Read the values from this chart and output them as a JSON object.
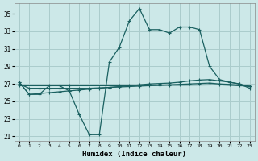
{
  "title": "",
  "xlabel": "Humidex (Indice chaleur)",
  "ylabel": "",
  "background_color": "#cce8e8",
  "grid_color": "#aacccc",
  "line_color": "#1a6060",
  "xlim": [
    -0.5,
    23.5
  ],
  "ylim": [
    20.5,
    36.2
  ],
  "yticks": [
    21,
    23,
    25,
    27,
    29,
    31,
    33,
    35
  ],
  "xticks": [
    0,
    1,
    2,
    3,
    4,
    5,
    6,
    7,
    8,
    9,
    10,
    11,
    12,
    13,
    14,
    15,
    16,
    17,
    18,
    19,
    20,
    21,
    22,
    23
  ],
  "main_line_x": [
    0,
    1,
    2,
    3,
    4,
    5,
    6,
    7,
    8,
    9,
    10,
    11,
    12,
    13,
    14,
    15,
    16,
    17,
    18,
    19,
    20,
    21,
    22,
    23
  ],
  "main_line_y": [
    27.2,
    25.8,
    25.8,
    26.8,
    26.8,
    26.2,
    23.5,
    21.2,
    21.2,
    29.5,
    31.2,
    34.2,
    35.6,
    33.2,
    33.2,
    32.8,
    33.5,
    33.5,
    33.2,
    29.0,
    27.5,
    27.2,
    27.0,
    26.5
  ],
  "line2_x": [
    0,
    1,
    2,
    3,
    4,
    5,
    6,
    7,
    8,
    9,
    10,
    11,
    12,
    13,
    14,
    15,
    16,
    17,
    18,
    19,
    20,
    21,
    22,
    23
  ],
  "line2_y": [
    27.2,
    25.8,
    25.9,
    26.0,
    26.1,
    26.2,
    26.3,
    26.4,
    26.5,
    26.6,
    26.7,
    26.8,
    26.9,
    27.0,
    27.05,
    27.1,
    27.2,
    27.35,
    27.45,
    27.5,
    27.35,
    27.2,
    27.0,
    26.7
  ],
  "line3_x": [
    0,
    1,
    2,
    3,
    4,
    5,
    6,
    7,
    8,
    9,
    10,
    11,
    12,
    13,
    14,
    15,
    16,
    17,
    18,
    19,
    20,
    21,
    22,
    23
  ],
  "line3_y": [
    27.0,
    26.5,
    26.5,
    26.5,
    26.5,
    26.5,
    26.5,
    26.5,
    26.55,
    26.6,
    26.65,
    26.7,
    26.75,
    26.8,
    26.85,
    26.9,
    26.95,
    27.0,
    27.05,
    27.1,
    27.0,
    26.95,
    26.85,
    26.7
  ],
  "line4_x": [
    0,
    5,
    10,
    15,
    20,
    23
  ],
  "line4_y": [
    26.8,
    26.8,
    26.8,
    26.85,
    26.9,
    26.75
  ]
}
